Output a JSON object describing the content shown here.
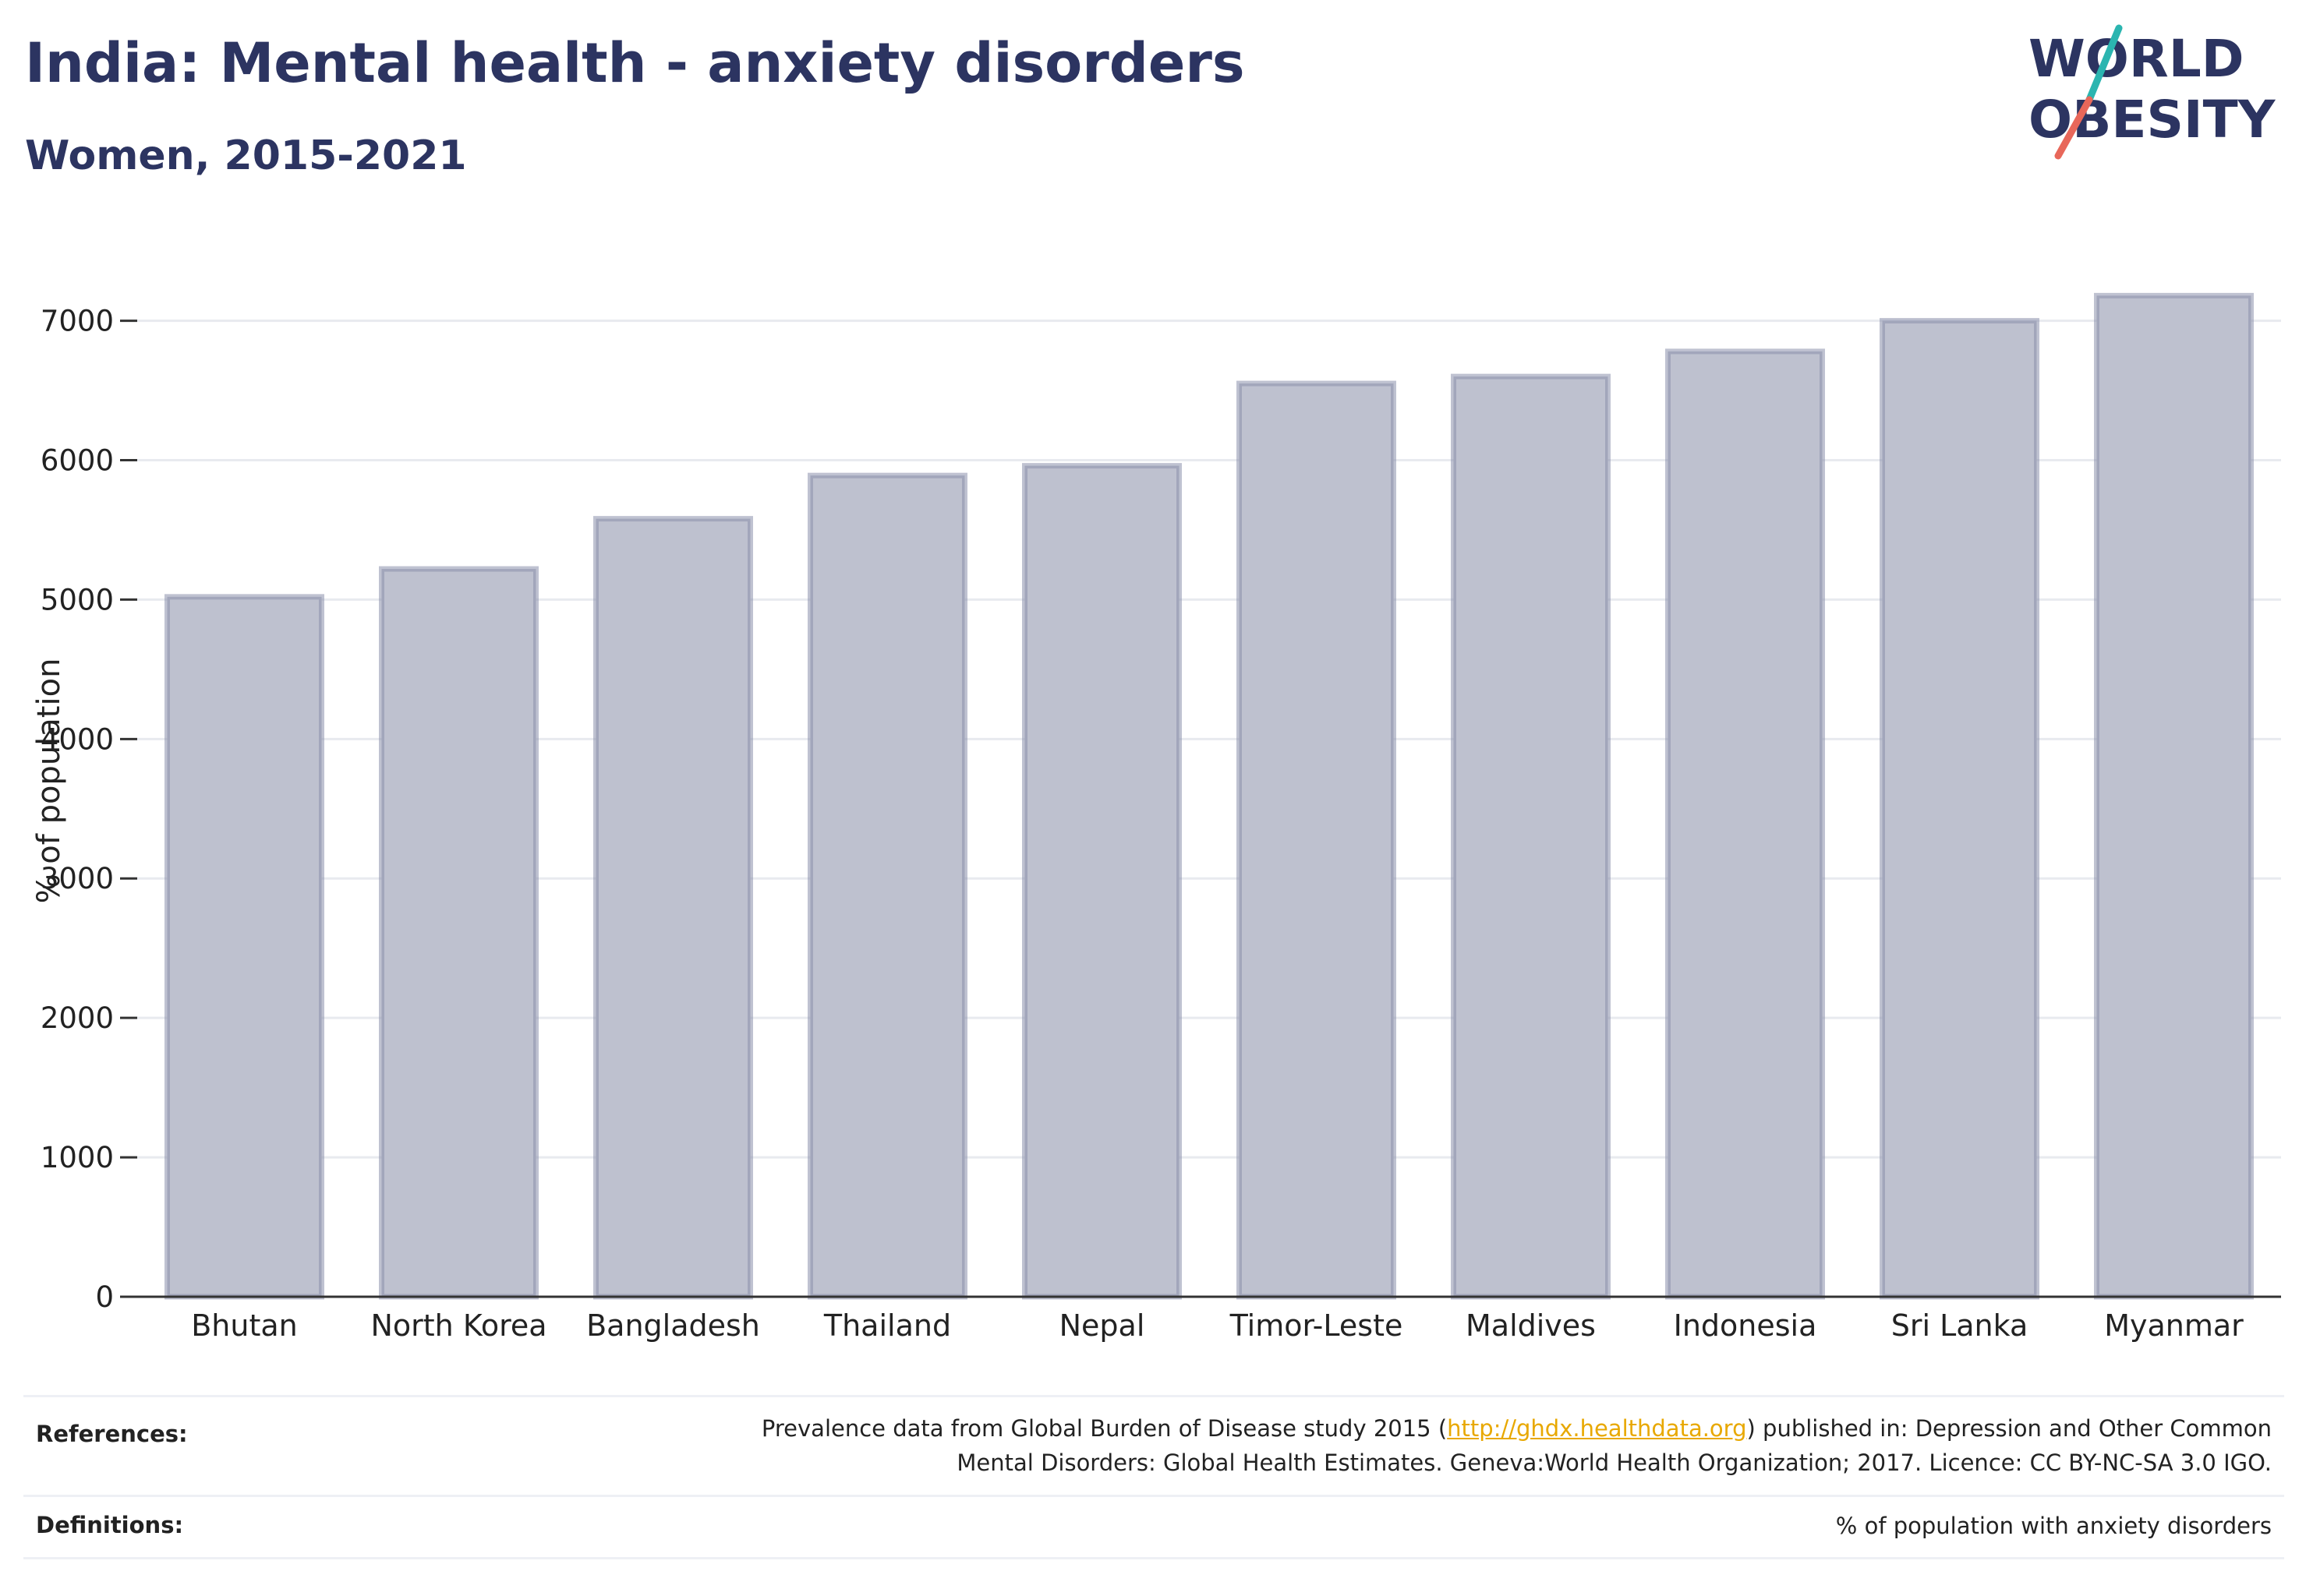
{
  "header": {
    "title": "India: Mental health - anxiety disorders",
    "subtitle": "Women, 2015-2021"
  },
  "logo": {
    "line1": "WORLD",
    "line2": "OBESITY",
    "text_color": "#2c3461",
    "slash_color_top": "#2bb5b0",
    "slash_color_bottom": "#e8675a"
  },
  "chart_data": {
    "type": "bar",
    "title": "",
    "xlabel": "",
    "ylabel": "% of population",
    "ylim": [
      0,
      7400
    ],
    "yticks": [
      0,
      1000,
      2000,
      3000,
      4000,
      5000,
      6000,
      7000
    ],
    "categories": [
      "Bhutan",
      "North Korea",
      "Bangladesh",
      "Thailand",
      "Nepal",
      "Timor-Leste",
      "Maldives",
      "Indonesia",
      "Sri Lanka",
      "Myanmar"
    ],
    "values": [
      5020,
      5220,
      5580,
      5890,
      5960,
      6550,
      6600,
      6780,
      7000,
      7180
    ],
    "bar_color": "#bec1cf",
    "bar_edge_color": "#8a90ab",
    "grid": true
  },
  "footer": {
    "references_label": "References:",
    "references_line1_pre": "Prevalence data from Global Burden of Disease study 2015 (",
    "references_link": "http://ghdx.healthdata.org",
    "references_line1_post": ") published in: Depression and Other Common",
    "references_line2": "Mental Disorders: Global Health Estimates. Geneva:World Health Organization; 2017. Licence: CC BY-NC-SA 3.0 IGO.",
    "definitions_label": "Definitions:",
    "definitions_text": "% of population with anxiety disorders"
  }
}
